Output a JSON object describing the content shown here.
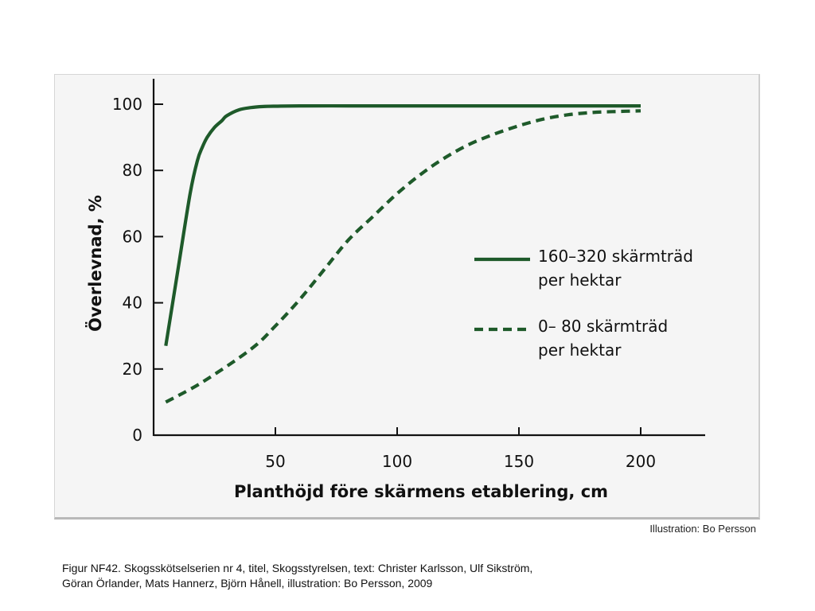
{
  "credit": "Illustration: Bo Persson",
  "caption": {
    "line1": "Figur  NF42. Skogsskötselserien nr 4, titel, Skogsstyrelsen, text: Christer Karlsson, Ulf Sikström,",
    "line2": "Göran Örlander, Mats Hannerz, Björn Hånell, illustration: Bo Persson, 2009"
  },
  "colors": {
    "series": "#1e5a2a",
    "panel": "#f5f5f5",
    "axis": "#111111"
  },
  "chart_data": {
    "type": "line",
    "xlabel": "Planthöjd före skärmens etablering, cm",
    "ylabel": "Överlevnad, %",
    "xlim": [
      0,
      225
    ],
    "ylim": [
      0,
      100
    ],
    "xticks": [
      50,
      100,
      150,
      200
    ],
    "yticks": [
      0,
      20,
      40,
      60,
      80,
      100
    ],
    "legend_position": "right",
    "series": [
      {
        "name_lines": [
          "160–320 skärmträd",
          "per hektar"
        ],
        "style": "solid",
        "x": [
          5,
          10,
          15,
          18,
          20,
          22,
          25,
          28,
          30,
          35,
          40,
          45,
          50,
          60,
          80,
          100,
          150,
          200
        ],
        "y": [
          27,
          50,
          73,
          83,
          87,
          90,
          93,
          95,
          96.5,
          98.3,
          99,
          99.3,
          99.4,
          99.5,
          99.5,
          99.5,
          99.5,
          99.5
        ]
      },
      {
        "name_lines": [
          "0– 80 skärmträd",
          "per hektar"
        ],
        "style": "dashed",
        "x": [
          5,
          20,
          40,
          50,
          60,
          70,
          80,
          90,
          100,
          110,
          120,
          130,
          140,
          150,
          160,
          170,
          180,
          190,
          200
        ],
        "y": [
          10,
          16,
          26,
          33,
          41,
          50,
          59,
          66,
          73,
          79,
          84,
          88,
          91,
          93.5,
          95.5,
          96.8,
          97.5,
          97.8,
          98
        ]
      }
    ]
  }
}
